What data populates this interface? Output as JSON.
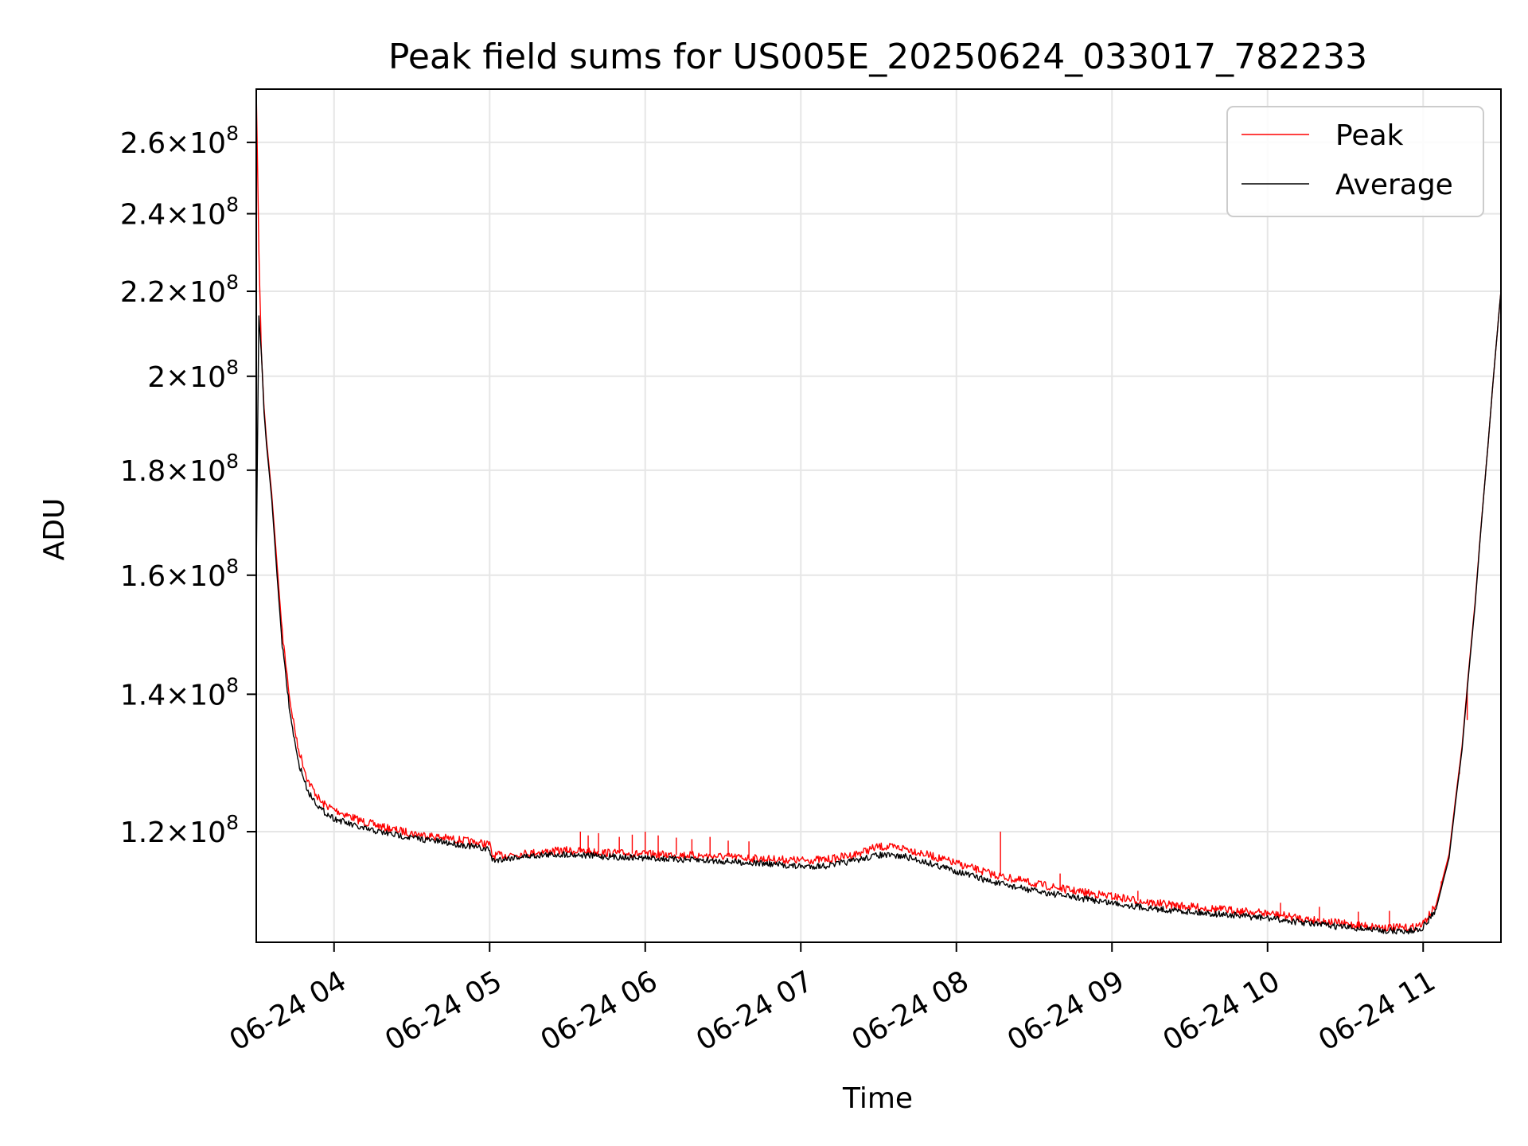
{
  "chart_data": {
    "type": "line",
    "title": "Peak field sums for US005E_20250624_033017_782233",
    "xlabel": "Time",
    "ylabel": "ADU",
    "yscale": "log",
    "ylim": [
      106000000,
      276000000
    ],
    "xlim": [
      "2025-06-24 03:30",
      "2025-06-24 11:30"
    ],
    "grid": true,
    "legend_position": "top-right",
    "x_ticks": [
      "06-24 04",
      "06-24 05",
      "06-24 06",
      "06-24 07",
      "06-24 08",
      "06-24 09",
      "06-24 10",
      "06-24 11"
    ],
    "y_ticks": [
      {
        "value": 120000000,
        "mantissa": "1.2",
        "base": "10",
        "exp": "8"
      },
      {
        "value": 140000000,
        "mantissa": "1.4",
        "base": "10",
        "exp": "8"
      },
      {
        "value": 160000000,
        "mantissa": "1.6",
        "base": "10",
        "exp": "8"
      },
      {
        "value": 180000000,
        "mantissa": "1.8",
        "base": "10",
        "exp": "8"
      },
      {
        "value": 200000000,
        "mantissa": "2",
        "base": "10",
        "exp": "8"
      },
      {
        "value": 220000000,
        "mantissa": "2.2",
        "base": "10",
        "exp": "8"
      },
      {
        "value": 240000000,
        "mantissa": "2.4",
        "base": "10",
        "exp": "8"
      },
      {
        "value": 260000000,
        "mantissa": "2.6",
        "base": "10",
        "exp": "8"
      }
    ],
    "series": [
      {
        "name": "Peak",
        "color": "#ff0000",
        "x": [
          "2025-06-24 03:30",
          "2025-06-24 03:31",
          "2025-06-24 03:32",
          "2025-06-24 03:33",
          "2025-06-24 03:34",
          "2025-06-24 03:36",
          "2025-06-24 03:38",
          "2025-06-24 03:40",
          "2025-06-24 03:43",
          "2025-06-24 03:46",
          "2025-06-24 03:50",
          "2025-06-24 03:55",
          "2025-06-24 04:00",
          "2025-06-24 04:10",
          "2025-06-24 04:20",
          "2025-06-24 04:30",
          "2025-06-24 04:40",
          "2025-06-24 04:50",
          "2025-06-24 05:00",
          "2025-06-24 05:01",
          "2025-06-24 05:10",
          "2025-06-24 05:20",
          "2025-06-24 05:30",
          "2025-06-24 05:45",
          "2025-06-24 06:00",
          "2025-06-24 06:15",
          "2025-06-24 06:30",
          "2025-06-24 06:45",
          "2025-06-24 07:00",
          "2025-06-24 07:10",
          "2025-06-24 07:20",
          "2025-06-24 07:30",
          "2025-06-24 07:40",
          "2025-06-24 07:50",
          "2025-06-24 08:00",
          "2025-06-24 08:15",
          "2025-06-24 08:30",
          "2025-06-24 08:45",
          "2025-06-24 09:00",
          "2025-06-24 09:15",
          "2025-06-24 09:30",
          "2025-06-24 09:45",
          "2025-06-24 10:00",
          "2025-06-24 10:15",
          "2025-06-24 10:30",
          "2025-06-24 10:45",
          "2025-06-24 10:55",
          "2025-06-24 11:00",
          "2025-06-24 11:05",
          "2025-06-24 11:10",
          "2025-06-24 11:15",
          "2025-06-24 11:20",
          "2025-06-24 11:25",
          "2025-06-24 11:30"
        ],
        "values": [
          276000000,
          230000000,
          205000000,
          193000000,
          186000000,
          175000000,
          162000000,
          150000000,
          139000000,
          132000000,
          127000000,
          124000000,
          123000000,
          121500000,
          120500000,
          119800000,
          119300000,
          118800000,
          118300000,
          116800000,
          117000000,
          117300000,
          117500000,
          117200000,
          117000000,
          116900000,
          116700000,
          116400000,
          116200000,
          116300000,
          116900000,
          118000000,
          117800000,
          116800000,
          115800000,
          114300000,
          113200000,
          112300000,
          111600000,
          110800000,
          110300000,
          109900000,
          109500000,
          108800000,
          108200000,
          107800000,
          107700000,
          108200000,
          110500000,
          117000000,
          132000000,
          155000000,
          185000000,
          220000000
        ],
        "spikes": [
          {
            "x": "2025-06-24 05:35",
            "y": 120000000
          },
          {
            "x": "2025-06-24 05:38",
            "y": 119500000
          },
          {
            "x": "2025-06-24 05:42",
            "y": 119800000
          },
          {
            "x": "2025-06-24 05:50",
            "y": 119300000
          },
          {
            "x": "2025-06-24 05:55",
            "y": 119600000
          },
          {
            "x": "2025-06-24 06:00",
            "y": 120000000
          },
          {
            "x": "2025-06-24 06:05",
            "y": 119500000
          },
          {
            "x": "2025-06-24 06:12",
            "y": 119200000
          },
          {
            "x": "2025-06-24 06:18",
            "y": 119000000
          },
          {
            "x": "2025-06-24 06:25",
            "y": 119300000
          },
          {
            "x": "2025-06-24 06:32",
            "y": 118800000
          },
          {
            "x": "2025-06-24 06:40",
            "y": 118700000
          },
          {
            "x": "2025-06-24 08:17",
            "y": 120000000
          },
          {
            "x": "2025-06-24 08:40",
            "y": 114500000
          },
          {
            "x": "2025-06-24 09:10",
            "y": 112300000
          },
          {
            "x": "2025-06-24 10:05",
            "y": 110800000
          },
          {
            "x": "2025-06-24 10:20",
            "y": 110300000
          },
          {
            "x": "2025-06-24 10:35",
            "y": 109700000
          },
          {
            "x": "2025-06-24 10:47",
            "y": 109800000
          },
          {
            "x": "2025-06-24 11:07",
            "y": 113500000
          },
          {
            "x": "2025-06-24 11:14",
            "y": 128000000
          },
          {
            "x": "2025-06-24 11:17",
            "y": 136000000
          }
        ]
      },
      {
        "name": "Average",
        "color": "#000000",
        "x": [
          "2025-06-24 03:30",
          "2025-06-24 03:31",
          "2025-06-24 03:32",
          "2025-06-24 03:33",
          "2025-06-24 03:34",
          "2025-06-24 03:36",
          "2025-06-24 03:38",
          "2025-06-24 03:40",
          "2025-06-24 03:43",
          "2025-06-24 03:46",
          "2025-06-24 03:50",
          "2025-06-24 03:55",
          "2025-06-24 04:00",
          "2025-06-24 04:10",
          "2025-06-24 04:20",
          "2025-06-24 04:30",
          "2025-06-24 04:40",
          "2025-06-24 04:50",
          "2025-06-24 05:00",
          "2025-06-24 05:01",
          "2025-06-24 05:10",
          "2025-06-24 05:20",
          "2025-06-24 05:30",
          "2025-06-24 05:45",
          "2025-06-24 06:00",
          "2025-06-24 06:15",
          "2025-06-24 06:30",
          "2025-06-24 06:45",
          "2025-06-24 07:00",
          "2025-06-24 07:10",
          "2025-06-24 07:20",
          "2025-06-24 07:30",
          "2025-06-24 07:40",
          "2025-06-24 07:50",
          "2025-06-24 08:00",
          "2025-06-24 08:15",
          "2025-06-24 08:30",
          "2025-06-24 08:45",
          "2025-06-24 09:00",
          "2025-06-24 09:15",
          "2025-06-24 09:30",
          "2025-06-24 09:45",
          "2025-06-24 10:00",
          "2025-06-24 10:15",
          "2025-06-24 10:30",
          "2025-06-24 10:45",
          "2025-06-24 10:55",
          "2025-06-24 11:00",
          "2025-06-24 11:05",
          "2025-06-24 11:10",
          "2025-06-24 11:15",
          "2025-06-24 11:20",
          "2025-06-24 11:25",
          "2025-06-24 11:30"
        ],
        "values": [
          160000000,
          214000000,
          205000000,
          192000000,
          185000000,
          174000000,
          160000000,
          148000000,
          137000000,
          130000000,
          125500000,
          123000000,
          121800000,
          120500000,
          119800000,
          119200000,
          118700000,
          118200000,
          117600000,
          116200000,
          116600000,
          116900000,
          117000000,
          116700000,
          116500000,
          116300000,
          116100000,
          115800000,
          115400000,
          115500000,
          116100000,
          116900000,
          116700000,
          115800000,
          114800000,
          113300000,
          112300000,
          111500000,
          110800000,
          110100000,
          109700000,
          109300000,
          108900000,
          108300000,
          107800000,
          107400000,
          107300000,
          107800000,
          110000000,
          116500000,
          131500000,
          154500000,
          185000000,
          220000000
        ]
      }
    ]
  }
}
